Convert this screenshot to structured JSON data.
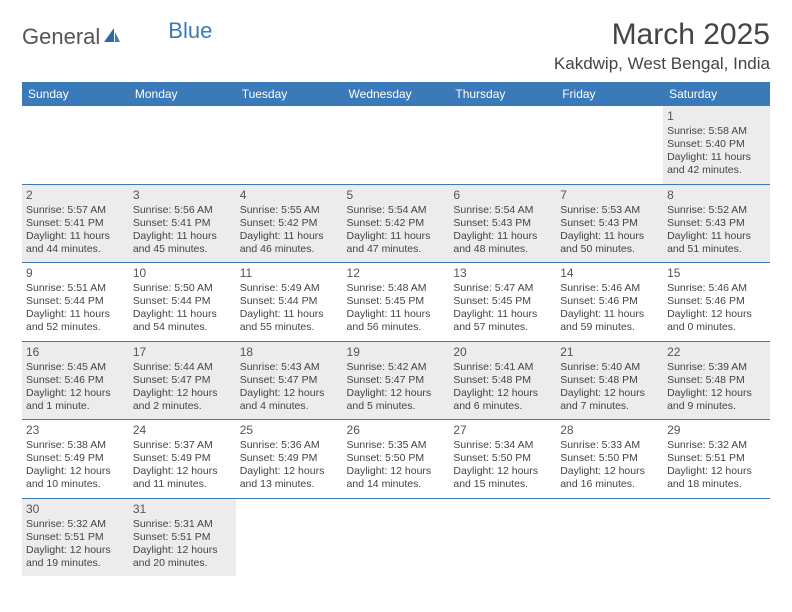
{
  "logo": {
    "part1": "General",
    "part2": "Blue"
  },
  "title": "March 2025",
  "location": "Kakdwip, West Bengal, India",
  "colors": {
    "header_bg": "#3a7ab8",
    "header_text": "#ffffff",
    "shaded_bg": "#ececec",
    "border": "#3a7ab8",
    "text": "#444444"
  },
  "day_headers": [
    "Sunday",
    "Monday",
    "Tuesday",
    "Wednesday",
    "Thursday",
    "Friday",
    "Saturday"
  ],
  "weeks": [
    [
      {
        "empty": true
      },
      {
        "empty": true
      },
      {
        "empty": true
      },
      {
        "empty": true
      },
      {
        "empty": true
      },
      {
        "empty": true
      },
      {
        "n": "1",
        "sr": "Sunrise: 5:58 AM",
        "ss": "Sunset: 5:40 PM",
        "dl": "Daylight: 11 hours and 42 minutes.",
        "sh": true
      }
    ],
    [
      {
        "n": "2",
        "sr": "Sunrise: 5:57 AM",
        "ss": "Sunset: 5:41 PM",
        "dl": "Daylight: 11 hours and 44 minutes.",
        "sh": true
      },
      {
        "n": "3",
        "sr": "Sunrise: 5:56 AM",
        "ss": "Sunset: 5:41 PM",
        "dl": "Daylight: 11 hours and 45 minutes.",
        "sh": true
      },
      {
        "n": "4",
        "sr": "Sunrise: 5:55 AM",
        "ss": "Sunset: 5:42 PM",
        "dl": "Daylight: 11 hours and 46 minutes.",
        "sh": true
      },
      {
        "n": "5",
        "sr": "Sunrise: 5:54 AM",
        "ss": "Sunset: 5:42 PM",
        "dl": "Daylight: 11 hours and 47 minutes.",
        "sh": true
      },
      {
        "n": "6",
        "sr": "Sunrise: 5:54 AM",
        "ss": "Sunset: 5:43 PM",
        "dl": "Daylight: 11 hours and 48 minutes.",
        "sh": true
      },
      {
        "n": "7",
        "sr": "Sunrise: 5:53 AM",
        "ss": "Sunset: 5:43 PM",
        "dl": "Daylight: 11 hours and 50 minutes.",
        "sh": true
      },
      {
        "n": "8",
        "sr": "Sunrise: 5:52 AM",
        "ss": "Sunset: 5:43 PM",
        "dl": "Daylight: 11 hours and 51 minutes.",
        "sh": true
      }
    ],
    [
      {
        "n": "9",
        "sr": "Sunrise: 5:51 AM",
        "ss": "Sunset: 5:44 PM",
        "dl": "Daylight: 11 hours and 52 minutes."
      },
      {
        "n": "10",
        "sr": "Sunrise: 5:50 AM",
        "ss": "Sunset: 5:44 PM",
        "dl": "Daylight: 11 hours and 54 minutes."
      },
      {
        "n": "11",
        "sr": "Sunrise: 5:49 AM",
        "ss": "Sunset: 5:44 PM",
        "dl": "Daylight: 11 hours and 55 minutes."
      },
      {
        "n": "12",
        "sr": "Sunrise: 5:48 AM",
        "ss": "Sunset: 5:45 PM",
        "dl": "Daylight: 11 hours and 56 minutes."
      },
      {
        "n": "13",
        "sr": "Sunrise: 5:47 AM",
        "ss": "Sunset: 5:45 PM",
        "dl": "Daylight: 11 hours and 57 minutes."
      },
      {
        "n": "14",
        "sr": "Sunrise: 5:46 AM",
        "ss": "Sunset: 5:46 PM",
        "dl": "Daylight: 11 hours and 59 minutes."
      },
      {
        "n": "15",
        "sr": "Sunrise: 5:46 AM",
        "ss": "Sunset: 5:46 PM",
        "dl": "Daylight: 12 hours and 0 minutes."
      }
    ],
    [
      {
        "n": "16",
        "sr": "Sunrise: 5:45 AM",
        "ss": "Sunset: 5:46 PM",
        "dl": "Daylight: 12 hours and 1 minute.",
        "sh": true
      },
      {
        "n": "17",
        "sr": "Sunrise: 5:44 AM",
        "ss": "Sunset: 5:47 PM",
        "dl": "Daylight: 12 hours and 2 minutes.",
        "sh": true
      },
      {
        "n": "18",
        "sr": "Sunrise: 5:43 AM",
        "ss": "Sunset: 5:47 PM",
        "dl": "Daylight: 12 hours and 4 minutes.",
        "sh": true
      },
      {
        "n": "19",
        "sr": "Sunrise: 5:42 AM",
        "ss": "Sunset: 5:47 PM",
        "dl": "Daylight: 12 hours and 5 minutes.",
        "sh": true
      },
      {
        "n": "20",
        "sr": "Sunrise: 5:41 AM",
        "ss": "Sunset: 5:48 PM",
        "dl": "Daylight: 12 hours and 6 minutes.",
        "sh": true
      },
      {
        "n": "21",
        "sr": "Sunrise: 5:40 AM",
        "ss": "Sunset: 5:48 PM",
        "dl": "Daylight: 12 hours and 7 minutes.",
        "sh": true
      },
      {
        "n": "22",
        "sr": "Sunrise: 5:39 AM",
        "ss": "Sunset: 5:48 PM",
        "dl": "Daylight: 12 hours and 9 minutes.",
        "sh": true
      }
    ],
    [
      {
        "n": "23",
        "sr": "Sunrise: 5:38 AM",
        "ss": "Sunset: 5:49 PM",
        "dl": "Daylight: 12 hours and 10 minutes."
      },
      {
        "n": "24",
        "sr": "Sunrise: 5:37 AM",
        "ss": "Sunset: 5:49 PM",
        "dl": "Daylight: 12 hours and 11 minutes."
      },
      {
        "n": "25",
        "sr": "Sunrise: 5:36 AM",
        "ss": "Sunset: 5:49 PM",
        "dl": "Daylight: 12 hours and 13 minutes."
      },
      {
        "n": "26",
        "sr": "Sunrise: 5:35 AM",
        "ss": "Sunset: 5:50 PM",
        "dl": "Daylight: 12 hours and 14 minutes."
      },
      {
        "n": "27",
        "sr": "Sunrise: 5:34 AM",
        "ss": "Sunset: 5:50 PM",
        "dl": "Daylight: 12 hours and 15 minutes."
      },
      {
        "n": "28",
        "sr": "Sunrise: 5:33 AM",
        "ss": "Sunset: 5:50 PM",
        "dl": "Daylight: 12 hours and 16 minutes."
      },
      {
        "n": "29",
        "sr": "Sunrise: 5:32 AM",
        "ss": "Sunset: 5:51 PM",
        "dl": "Daylight: 12 hours and 18 minutes."
      }
    ],
    [
      {
        "n": "30",
        "sr": "Sunrise: 5:32 AM",
        "ss": "Sunset: 5:51 PM",
        "dl": "Daylight: 12 hours and 19 minutes.",
        "sh": true
      },
      {
        "n": "31",
        "sr": "Sunrise: 5:31 AM",
        "ss": "Sunset: 5:51 PM",
        "dl": "Daylight: 12 hours and 20 minutes.",
        "sh": true
      },
      {
        "empty": true
      },
      {
        "empty": true
      },
      {
        "empty": true
      },
      {
        "empty": true
      },
      {
        "empty": true
      }
    ]
  ]
}
